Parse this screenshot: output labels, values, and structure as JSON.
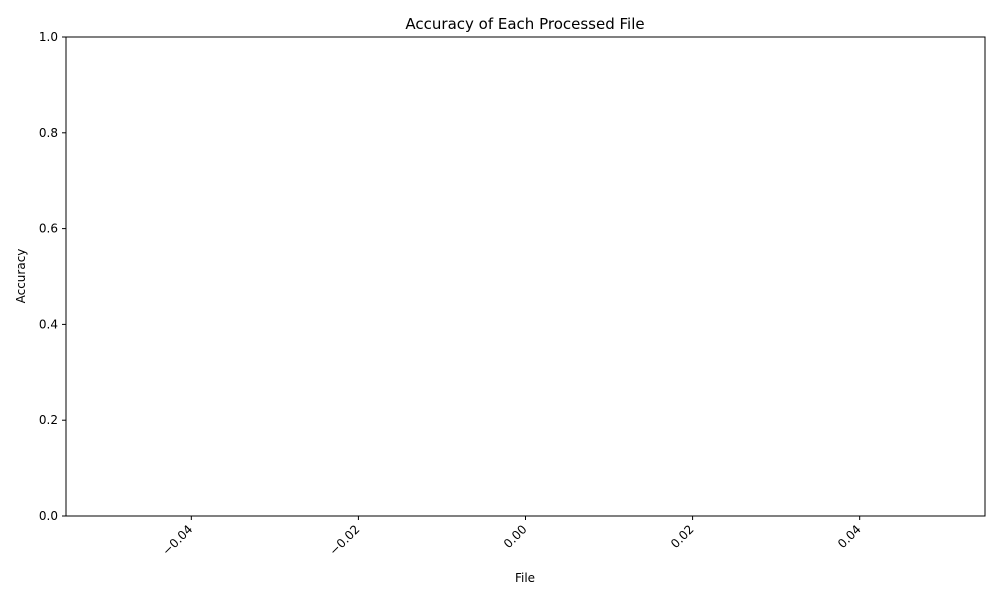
{
  "chart_data": {
    "type": "bar",
    "title": "Accuracy of Each Processed File",
    "xlabel": "File",
    "ylabel": "Accuracy",
    "categories": [],
    "values": [],
    "xlim": [
      -0.055,
      0.055
    ],
    "ylim": [
      0,
      1
    ],
    "x_ticks": [
      -0.04,
      -0.02,
      0.0,
      0.02,
      0.04
    ],
    "x_tick_labels": [
      "−0.04",
      "−0.02",
      "0.00",
      "0.02",
      "0.04"
    ],
    "x_tick_rotation": "45 degrees, right-aligned",
    "y_ticks": [
      0.0,
      0.2,
      0.4,
      0.6,
      0.8,
      1.0
    ],
    "y_tick_labels": [
      "0.0",
      "0.2",
      "0.4",
      "0.6",
      "0.8",
      "1.0"
    ],
    "grid": false,
    "legend": "none",
    "colors": {
      "text": "#000000",
      "axes": "#000000",
      "background": "#ffffff"
    }
  }
}
